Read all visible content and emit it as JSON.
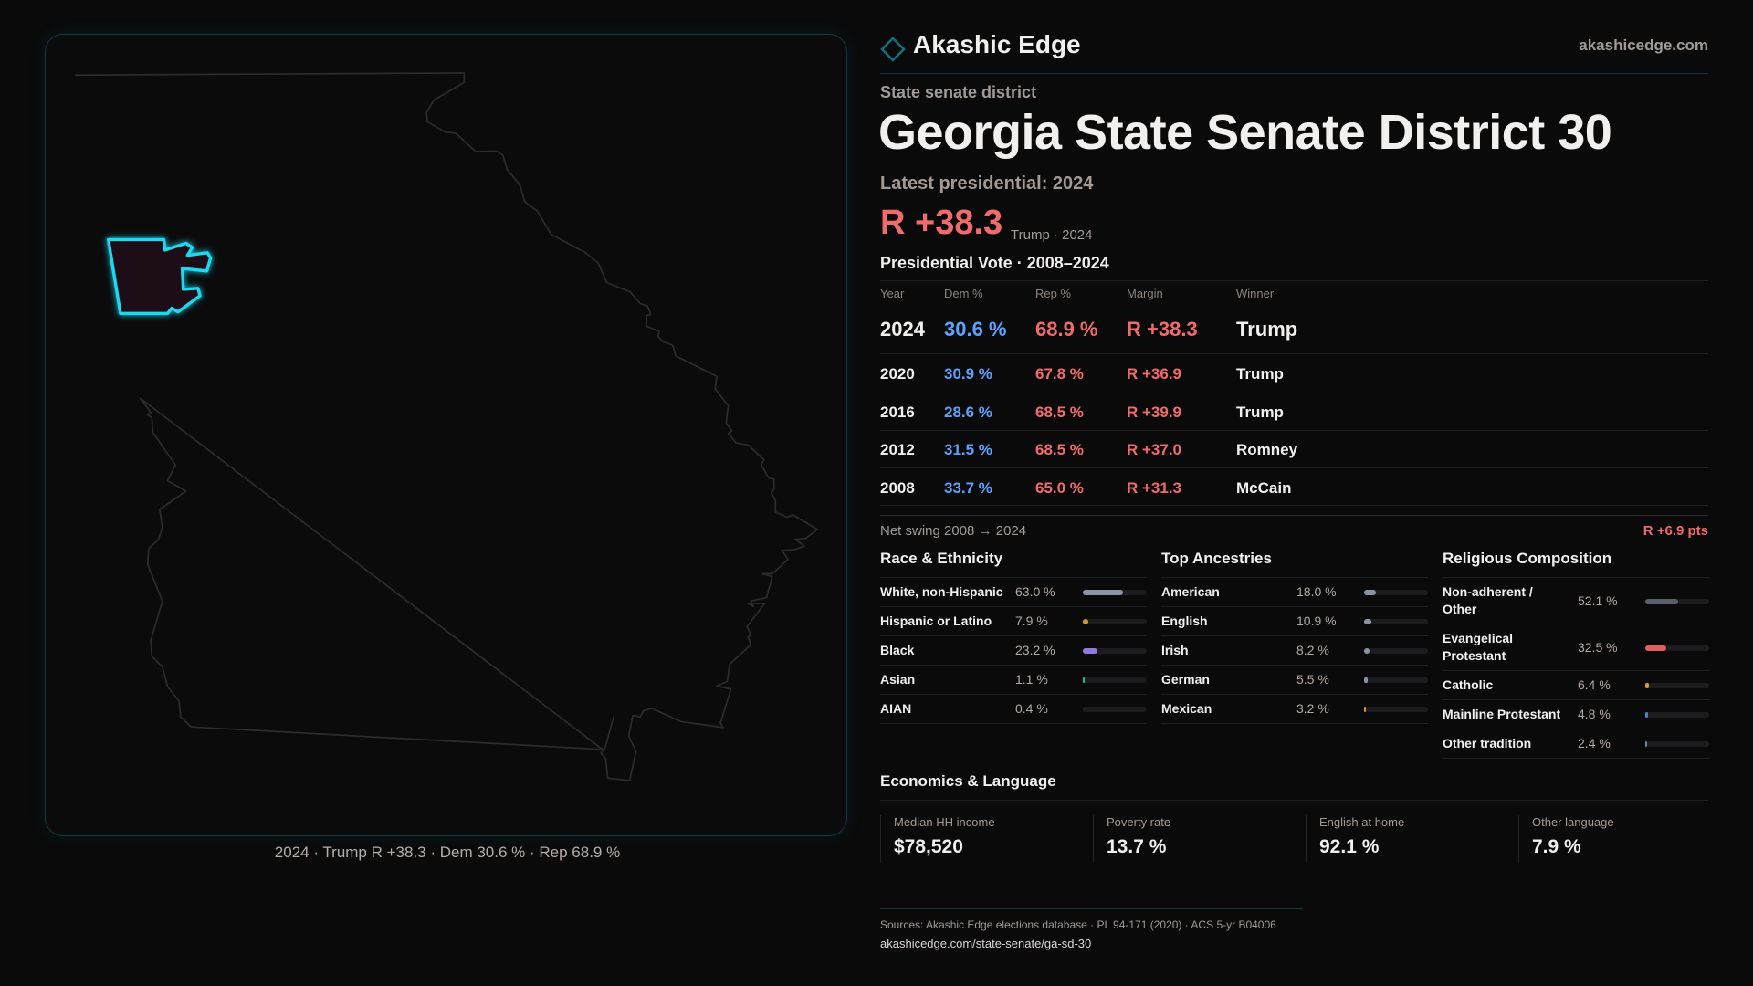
{
  "brand": {
    "name": "Akashic Edge",
    "url": "akashicedge.com",
    "icon": "diamond-icon",
    "accent": "#1ad8f0"
  },
  "header": {
    "kicker": "State senate district",
    "title": "Georgia State Senate District 30",
    "latest": "Latest presidential: 2024",
    "margin": "R +38.3",
    "margin_note": "Trump · 2024"
  },
  "map": {
    "caption": "2024 · Trump R +38.3 · Dem 30.6 % · Rep 68.9 %",
    "highlight_color": "#1ad8f0"
  },
  "votes": {
    "title": "Presidential Vote · 2008–2024",
    "columns": [
      "Year",
      "Dem %",
      "Rep %",
      "Margin",
      "Winner"
    ],
    "rows": [
      {
        "year": "2024",
        "dem": "30.6 %",
        "rep": "68.9 %",
        "margin": "R +38.3",
        "winner": "Trump"
      },
      {
        "year": "2020",
        "dem": "30.9 %",
        "rep": "67.8 %",
        "margin": "R +36.9",
        "winner": "Trump"
      },
      {
        "year": "2016",
        "dem": "28.6 %",
        "rep": "68.5 %",
        "margin": "R +39.9",
        "winner": "Trump"
      },
      {
        "year": "2012",
        "dem": "31.5 %",
        "rep": "68.5 %",
        "margin": "R +37.0",
        "winner": "Romney"
      },
      {
        "year": "2008",
        "dem": "33.7 %",
        "rep": "65.0 %",
        "margin": "R +31.3",
        "winner": "McCain"
      }
    ],
    "swing_label": "Net swing 2008 → 2024",
    "swing_value": "R +6.9 pts",
    "dem_color": "#5aa2ff",
    "rep_color": "#f26b6b"
  },
  "demographics": [
    {
      "title": "Race & Ethnicity",
      "items": [
        {
          "label": "White, non-Hispanic",
          "pct": "63.0 %",
          "value": 63.0,
          "color": "#8a94a6"
        },
        {
          "label": "Hispanic or Latino",
          "pct": "7.9 %",
          "value": 7.9,
          "color": "#d99a1a"
        },
        {
          "label": "Black",
          "pct": "23.2 %",
          "value": 23.2,
          "color": "#9478dc"
        },
        {
          "label": "Asian",
          "pct": "1.1 %",
          "value": 1.1,
          "color": "#30c090"
        },
        {
          "label": "AIAN",
          "pct": "0.4 %",
          "value": 0.4,
          "color": "#1c1c1f"
        }
      ]
    },
    {
      "title": "Top Ancestries",
      "items": [
        {
          "label": "American",
          "pct": "18.0 %",
          "value": 18.0,
          "color": "#8a94a6"
        },
        {
          "label": "English",
          "pct": "10.9 %",
          "value": 10.9,
          "color": "#8a94a6"
        },
        {
          "label": "Irish",
          "pct": "8.2 %",
          "value": 8.2,
          "color": "#8a94a6"
        },
        {
          "label": "German",
          "pct": "5.5 %",
          "value": 5.5,
          "color": "#8a94a6"
        },
        {
          "label": "Mexican",
          "pct": "3.2 %",
          "value": 3.2,
          "color": "#d99a1a"
        }
      ]
    },
    {
      "title": "Religious Composition",
      "items": [
        {
          "label": "Non-adherent / Other",
          "pct": "52.1 %",
          "value": 52.1,
          "color": "#5a5f6a"
        },
        {
          "label": "Evangelical Protestant",
          "pct": "32.5 %",
          "value": 32.5,
          "color": "#e06060"
        },
        {
          "label": "Catholic",
          "pct": "6.4 %",
          "value": 6.4,
          "color": "#d4a017"
        },
        {
          "label": "Mainline Protestant",
          "pct": "4.8 %",
          "value": 4.8,
          "color": "#4a80d0"
        },
        {
          "label": "Other tradition",
          "pct": "2.4 %",
          "value": 2.4,
          "color": "#7080a0"
        }
      ]
    }
  ],
  "economics": {
    "title": "Economics & Language",
    "cards": [
      {
        "label": "Median HH income",
        "value": "$78,520"
      },
      {
        "label": "Poverty rate",
        "value": "13.7 %"
      },
      {
        "label": "English at home",
        "value": "92.1 %"
      },
      {
        "label": "Other language",
        "value": "7.9 %"
      }
    ]
  },
  "footer": {
    "sources": "Sources: Akashic Edge elections database · PL 94-171 (2020) · ACS 5-yr B04006",
    "link": "akashicedge.com/state-senate/ga-sd-30"
  }
}
